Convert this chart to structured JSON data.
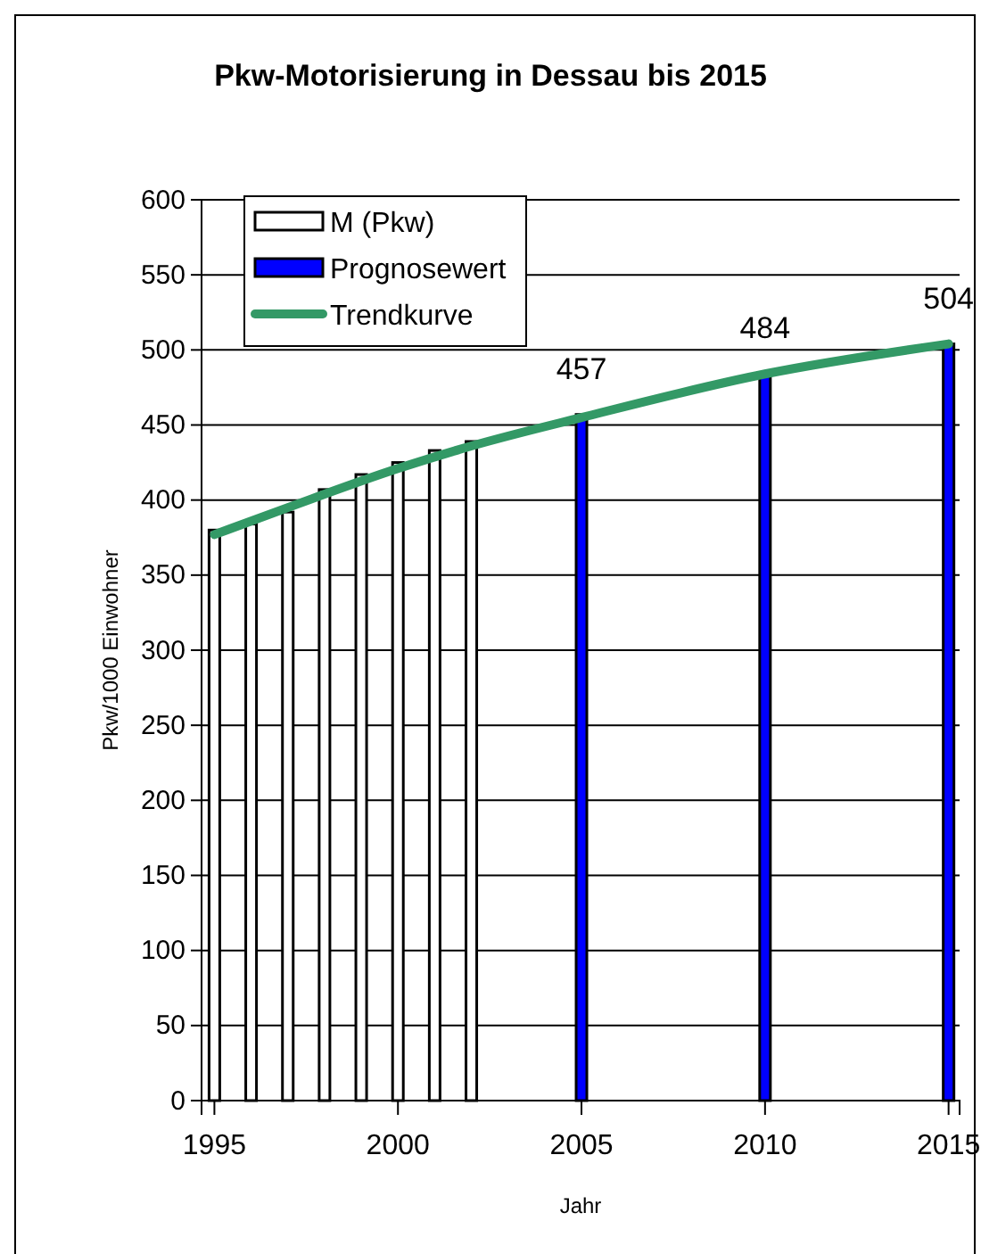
{
  "chart_data": {
    "type": "bar",
    "title": "Pkw-Motorisierung in Dessau bis 2015",
    "xlabel": "Jahr",
    "ylabel": "Pkw/1000 Einwohner",
    "xlim": [
      1994.65,
      2015.3
    ],
    "xticks": [
      1995,
      2000,
      2005,
      2010,
      2015
    ],
    "ylim": [
      0,
      600
    ],
    "yticks": [
      0,
      50,
      100,
      150,
      200,
      250,
      300,
      350,
      400,
      450,
      500,
      550,
      600
    ],
    "grid": "y",
    "legend": "top left",
    "series": [
      {
        "name": "M (Pkw)",
        "color": "#ffffff",
        "x": [
          1995,
          1996,
          1997,
          1998,
          1999,
          2000,
          2001,
          2002
        ],
        "values": [
          380,
          384,
          392,
          407,
          417,
          425,
          433,
          439
        ]
      },
      {
        "name": "Prognosewert",
        "color": "#0000ff",
        "x": [
          2005,
          2010,
          2015
        ],
        "values": [
          457,
          484,
          504
        ],
        "value_labels": [
          "457",
          "484",
          "504"
        ]
      },
      {
        "name": "Trendkurve",
        "type": "line",
        "color": "#339966",
        "x": [
          1995,
          1997,
          2000,
          2002,
          2005,
          2010,
          2015
        ],
        "values": [
          377,
          395,
          421,
          436,
          455,
          484,
          504
        ]
      }
    ]
  }
}
